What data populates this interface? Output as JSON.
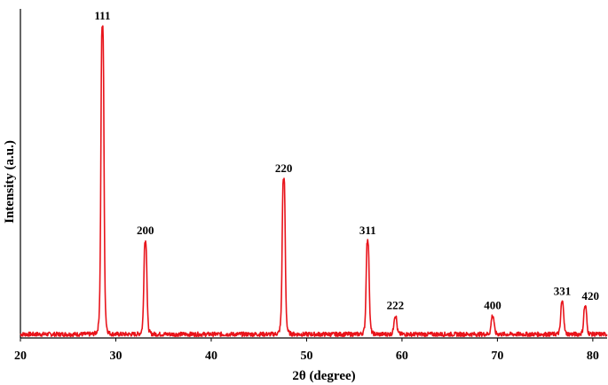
{
  "chart_data": {
    "type": "line",
    "title": "",
    "xlabel": "2θ (degree)",
    "ylabel": "Intensity (a.u.)",
    "xlim": [
      20,
      81.5
    ],
    "ylim": [
      0,
      100
    ],
    "xticks": [
      20,
      30,
      40,
      50,
      60,
      70,
      80
    ],
    "grid": false,
    "legend": "none",
    "series": [
      {
        "color": "#e8141b",
        "baseline": 1.2,
        "peaks": [
          {
            "x": 28.6,
            "y": 100,
            "label": "111"
          },
          {
            "x": 33.1,
            "y": 31,
            "label": "200"
          },
          {
            "x": 47.6,
            "y": 51,
            "label": "220"
          },
          {
            "x": 56.4,
            "y": 31,
            "label": "311"
          },
          {
            "x": 59.3,
            "y": 7,
            "label": "222"
          },
          {
            "x": 69.5,
            "y": 7,
            "label": "400"
          },
          {
            "x": 76.8,
            "y": 11.5,
            "label": "331"
          },
          {
            "x": 79.2,
            "y": 10,
            "label": "420"
          }
        ]
      }
    ]
  }
}
